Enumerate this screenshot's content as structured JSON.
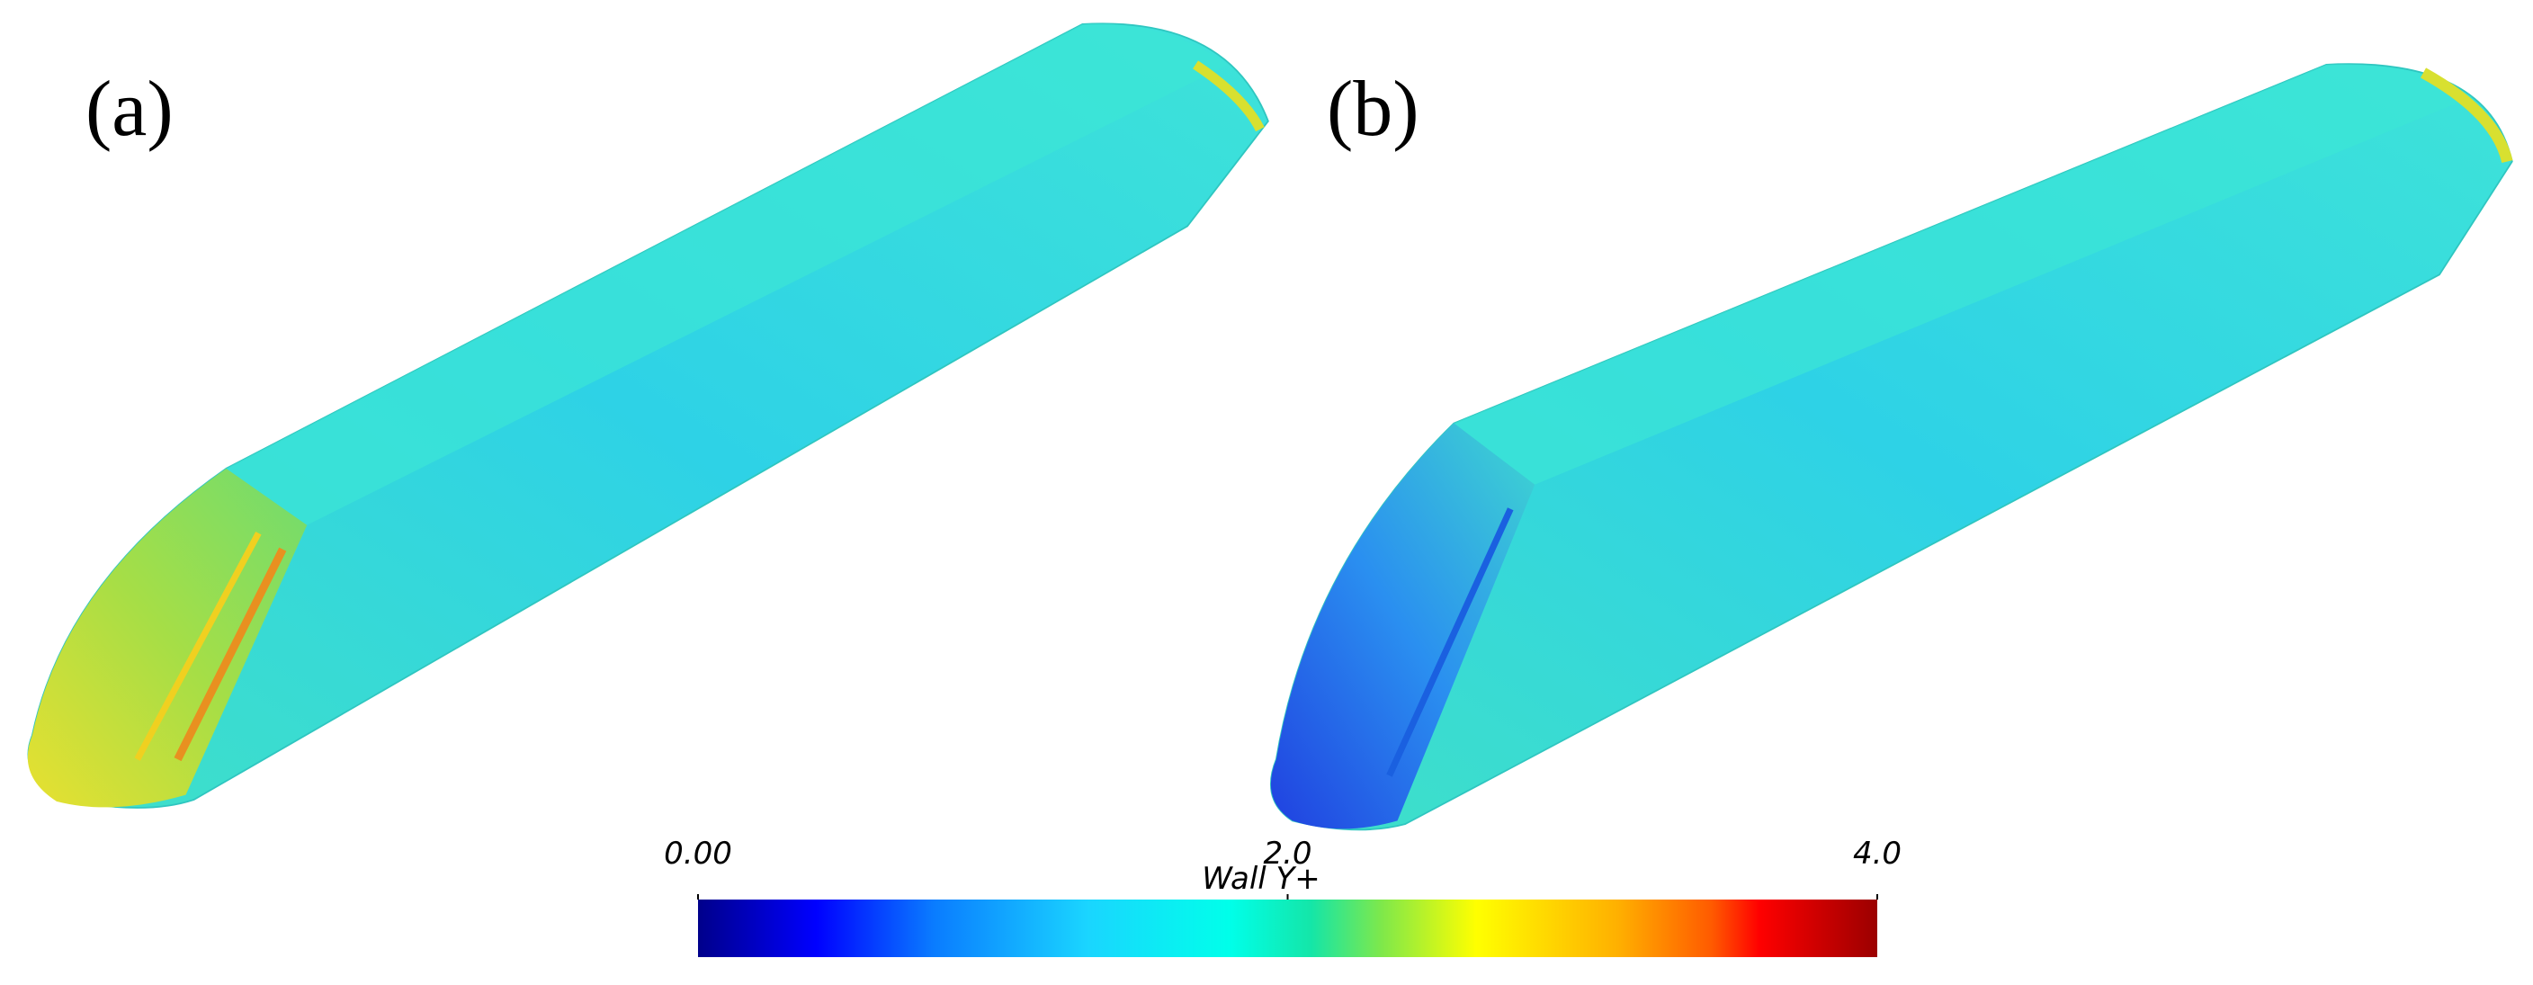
{
  "panels": [
    {
      "label": "(a)"
    },
    {
      "label": "(b)"
    }
  ],
  "colorbar": {
    "title": "Wall Y+",
    "lim": [
      0,
      4
    ],
    "ticks": [
      {
        "value": 0,
        "label": "0.00"
      },
      {
        "value": 2,
        "label": "2.0"
      },
      {
        "value": 4,
        "label": "4.0"
      }
    ]
  }
}
